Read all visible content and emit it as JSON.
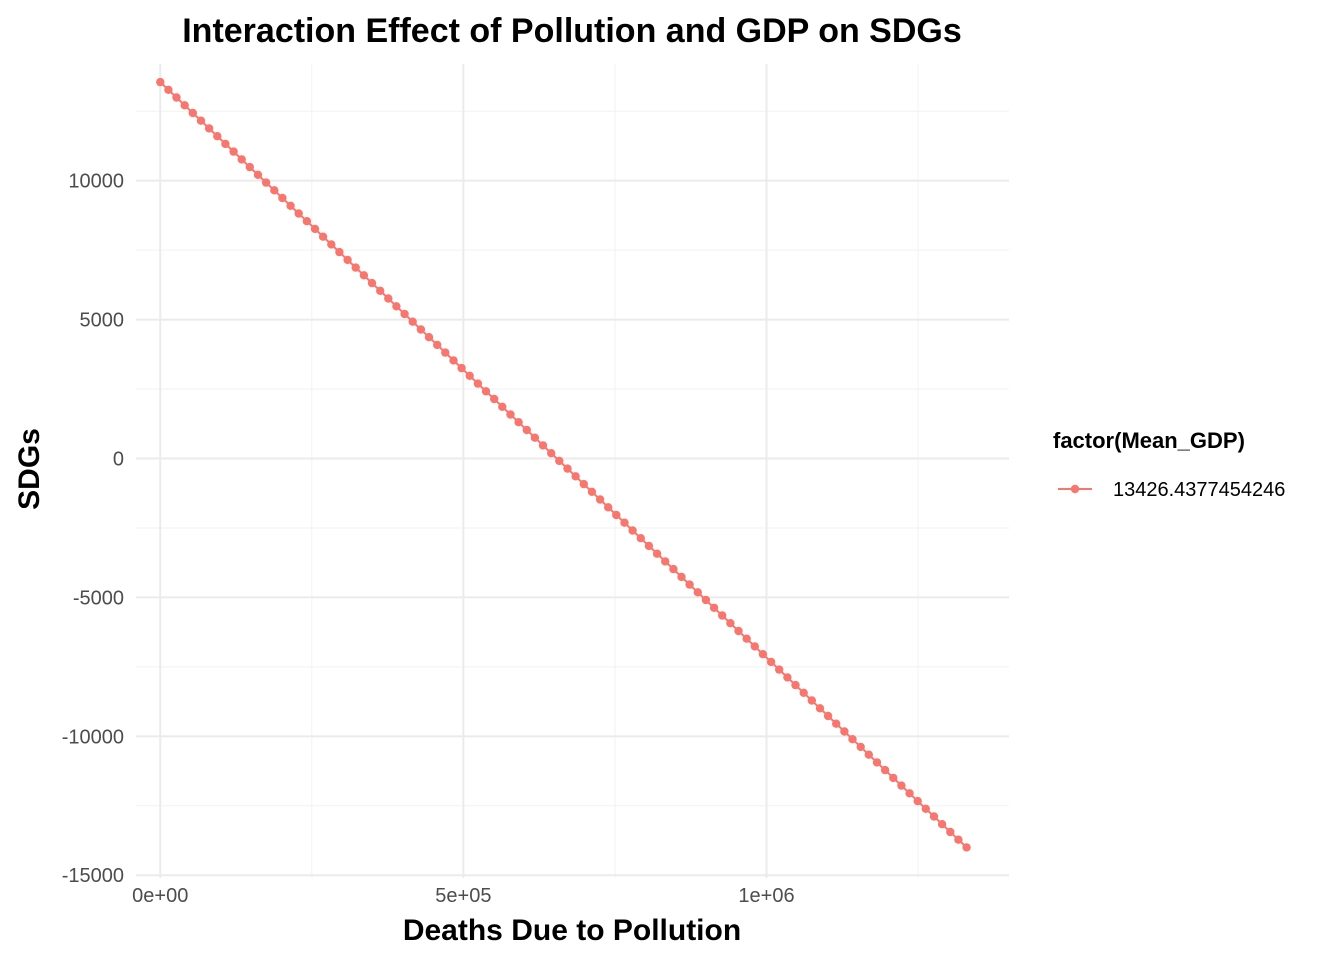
{
  "chart_data": {
    "type": "line",
    "title": "Interaction Effect of Pollution and GDP on SDGs",
    "xlabel": "Deaths Due to Pollution",
    "ylabel": "SDGs",
    "xlim": [
      -40000,
      1400000
    ],
    "ylim": [
      -15100,
      14200
    ],
    "x_ticks": [
      {
        "value": 0,
        "label": "0e+00"
      },
      {
        "value": 500000,
        "label": "5e+05"
      },
      {
        "value": 1000000,
        "label": "1e+06"
      }
    ],
    "x_minor_ticks": [
      250000,
      750000,
      1250000
    ],
    "y_ticks": [
      {
        "value": 10000,
        "label": "10000"
      },
      {
        "value": 5000,
        "label": "5000"
      },
      {
        "value": 0,
        "label": "0"
      },
      {
        "value": -5000,
        "label": "-5000"
      },
      {
        "value": -10000,
        "label": "-10000"
      },
      {
        "value": -15000,
        "label": "-15000"
      }
    ],
    "y_minor_ticks": [
      12500,
      7500,
      2500,
      -2500,
      -7500,
      -12500
    ],
    "grid": true,
    "legend": {
      "title": "factor(Mean_GDP)",
      "position": "right"
    },
    "series": [
      {
        "name": "13426.4377454246",
        "color": "#F8766D",
        "marker": "circle",
        "x_start": 0,
        "x_end": 1330000,
        "y_start": 13550,
        "y_end": -14000,
        "n_points": 100
      }
    ]
  }
}
